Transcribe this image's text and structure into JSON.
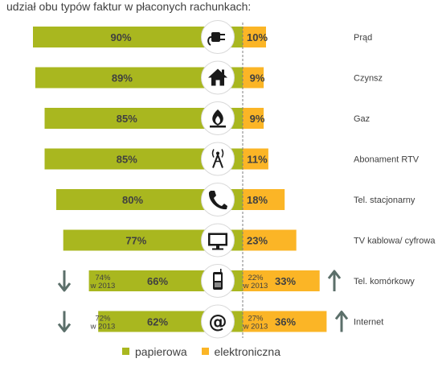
{
  "title": "udział obu typów faktur w płaconych rachunkach:",
  "colors": {
    "paper": "#a9b71f",
    "electronic": "#fbb526",
    "icon_bg": "#ffffff",
    "icon_fg": "#1a1a1a",
    "arrow": "#5b6f6a",
    "divider": "#7f7f7f"
  },
  "legend": {
    "paper": "papierowa",
    "electronic": "elektroniczna"
  },
  "chart_data": {
    "type": "bar",
    "title": "udział obu typów faktur w płaconych rachunkach:",
    "categories": [
      "Prąd",
      "Czynsz",
      "Gaz",
      "Abonament RTV",
      "Tel. stacjonarny",
      "TV kablowa/ cyfrowa",
      "Tel. komórkowy",
      "Internet"
    ],
    "icons": [
      "plug-icon",
      "house-icon",
      "flame-icon",
      "antenna-icon",
      "phone-icon",
      "monitor-icon",
      "mobile-phone-icon",
      "at-sign-icon"
    ],
    "series": [
      {
        "name": "papierowa",
        "values": [
          90,
          89,
          85,
          85,
          80,
          77,
          66,
          62
        ],
        "labels": [
          "90%",
          "89%",
          "85%",
          "85%",
          "80%",
          "77%",
          "66%",
          "62%"
        ]
      },
      {
        "name": "elektroniczna",
        "values": [
          10,
          9,
          9,
          11,
          18,
          23,
          33,
          36
        ],
        "labels": [
          "10%",
          "9%",
          "9%",
          "11%",
          "18%",
          "23%",
          "33%",
          "36%"
        ]
      }
    ],
    "previous": [
      null,
      null,
      null,
      null,
      null,
      null,
      {
        "paper": "74%",
        "electronic": "22%",
        "year": "w 2013",
        "paper_trend": "down",
        "electronic_trend": "up"
      },
      {
        "paper": "72%",
        "electronic": "27%",
        "year": "w 2013",
        "paper_trend": "down",
        "electronic_trend": "up"
      }
    ]
  }
}
